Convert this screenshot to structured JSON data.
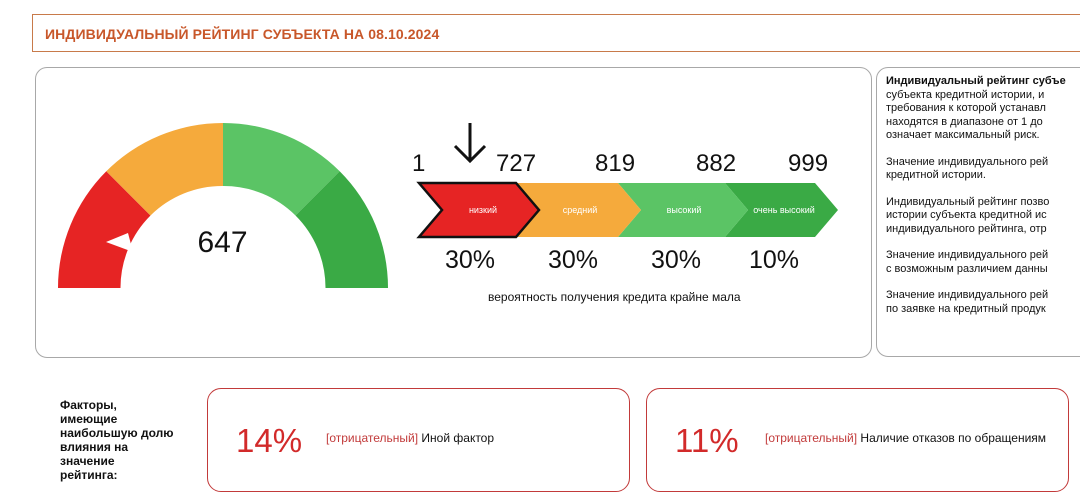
{
  "header": {
    "title": "ИНДИВИДУАЛЬНЫЙ РЕЙТИНГ СУБЪЕКТА НА 08.10.2024"
  },
  "gauge": {
    "value": "647",
    "colors": {
      "red": "#e62424",
      "orange": "#f5aa3c",
      "light_green": "#5bc465",
      "green": "#3aaa45"
    }
  },
  "scale": {
    "numbers": [
      "1",
      "727",
      "819",
      "882",
      "999"
    ],
    "segments": [
      {
        "label": "низкий",
        "color": "#e62424",
        "percent": "30%",
        "active": true
      },
      {
        "label": "средний",
        "color": "#f5aa3c",
        "percent": "30%",
        "active": false
      },
      {
        "label": "высокий",
        "color": "#5bc465",
        "percent": "30%",
        "active": false
      },
      {
        "label": "очень высокий",
        "color": "#3aaa45",
        "percent": "10%",
        "active": false
      }
    ],
    "marker_icon": "arrow-down-icon",
    "probability_text": "вероятность получения кредита крайне мала"
  },
  "side": {
    "p1_bold": "Индивидуальный рейтинг субъе",
    "p1_rest": [
      "субъекта кредитной истории, и",
      "требования к которой устанавл",
      "находятся в диапазоне от 1 до",
      "означает максимальный риск."
    ],
    "p2": [
      "Значение индивидуального рей",
      "кредитной истории."
    ],
    "p3": [
      "Индивидуальный рейтинг позво",
      "истории субъекта кредитной ис",
      "индивидуального рейтинга, отр"
    ],
    "p4": [
      "Значение индивидуального рей",
      "с возможным различием данны"
    ],
    "p5": [
      "Значение индивидуального рей",
      "по заявке на кредитный продук"
    ]
  },
  "factors": {
    "label_lines": [
      "Факторы,",
      "имеющие",
      "наибольшую долю",
      "влияния на",
      "значение",
      "рейтинга:"
    ],
    "cards": [
      {
        "percent": "14%",
        "tag": "[отрицательный]",
        "text": " Иной фактор"
      },
      {
        "percent": "11%",
        "tag": "[отрицательный]",
        "text": " Наличие отказов по обращениям"
      }
    ]
  }
}
